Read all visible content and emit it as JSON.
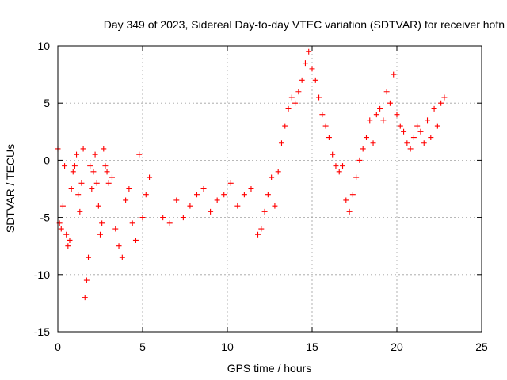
{
  "chart_data": {
    "type": "scatter",
    "title": "Day 349 of 2023, Sidereal Day-to-day VTEC variation (SDTVAR) for receiver hofn",
    "xlabel": "GPS time / hours",
    "ylabel": "SDTVAR / TECUs",
    "xlim": [
      0,
      25
    ],
    "ylim": [
      -15,
      10
    ],
    "x_ticks": [
      0,
      5,
      10,
      15,
      20,
      25
    ],
    "y_ticks": [
      -15,
      -10,
      -5,
      0,
      5,
      10
    ],
    "x_tick_labels": [
      "0",
      "5",
      "10",
      "15",
      "20",
      "25"
    ],
    "y_tick_labels": [
      "-15",
      "-10",
      "-5",
      "0",
      "5",
      "10"
    ],
    "grid": true,
    "marker": "+",
    "series": [
      {
        "name": "hofn",
        "color": "#ff0000",
        "x": [
          0.0,
          0.1,
          0.2,
          0.3,
          0.4,
          0.5,
          0.6,
          0.7,
          0.8,
          0.9,
          1.0,
          1.1,
          1.2,
          1.3,
          1.4,
          1.5,
          1.6,
          1.7,
          1.8,
          1.9,
          2.0,
          2.1,
          2.2,
          2.3,
          2.4,
          2.5,
          2.6,
          2.7,
          2.8,
          2.9,
          3.0,
          3.2,
          3.4,
          3.6,
          3.8,
          4.0,
          4.2,
          4.4,
          4.6,
          4.8,
          5.0,
          5.2,
          5.4,
          6.2,
          6.6,
          7.0,
          7.4,
          7.8,
          8.2,
          8.6,
          9.0,
          9.4,
          9.8,
          10.2,
          10.6,
          11.0,
          11.4,
          11.8,
          12.0,
          12.2,
          12.4,
          12.6,
          12.8,
          13.0,
          13.2,
          13.4,
          13.6,
          13.8,
          14.0,
          14.2,
          14.4,
          14.6,
          14.8,
          15.0,
          15.2,
          15.4,
          15.6,
          15.8,
          16.0,
          16.2,
          16.4,
          16.6,
          16.8,
          17.0,
          17.2,
          17.4,
          17.6,
          17.8,
          18.0,
          18.2,
          18.4,
          18.6,
          18.8,
          19.0,
          19.2,
          19.4,
          19.6,
          19.8,
          20.0,
          20.2,
          20.4,
          20.6,
          20.8,
          21.0,
          21.2,
          21.4,
          21.6,
          21.8,
          22.0,
          22.2,
          22.4,
          22.6,
          22.8
        ],
        "y": [
          1.0,
          -5.5,
          -6.0,
          -4.0,
          -0.5,
          -6.5,
          -7.5,
          -7.0,
          -2.5,
          -1.0,
          -0.5,
          0.5,
          -3.0,
          -4.5,
          -2.0,
          1.0,
          -12.0,
          -10.5,
          -8.5,
          -0.5,
          -2.5,
          -1.0,
          0.5,
          -2.0,
          -4.0,
          -6.5,
          -5.5,
          1.0,
          -0.5,
          -1.0,
          -2.0,
          -1.5,
          -6.0,
          -7.5,
          -8.5,
          -3.5,
          -2.5,
          -5.5,
          -7.0,
          0.5,
          -5.0,
          -3.0,
          -1.5,
          -5.0,
          -5.5,
          -3.5,
          -5.0,
          -4.0,
          -3.0,
          -2.5,
          -4.5,
          -3.5,
          -3.0,
          -2.0,
          -4.0,
          -3.0,
          -2.5,
          -6.5,
          -6.0,
          -4.5,
          -3.0,
          -1.5,
          -4.0,
          -1.0,
          1.5,
          3.0,
          4.5,
          5.5,
          5.0,
          6.0,
          7.0,
          8.5,
          9.5,
          8.0,
          7.0,
          5.5,
          4.0,
          3.0,
          2.0,
          0.5,
          -0.5,
          -1.0,
          -0.5,
          -3.5,
          -4.5,
          -3.0,
          -1.5,
          0.0,
          1.0,
          2.0,
          3.5,
          1.5,
          4.0,
          4.5,
          3.5,
          6.0,
          5.0,
          7.5,
          4.0,
          3.0,
          2.5,
          1.5,
          1.0,
          2.0,
          3.0,
          2.5,
          1.5,
          3.5,
          2.0,
          4.5,
          3.0,
          5.0,
          5.5
        ]
      }
    ]
  }
}
